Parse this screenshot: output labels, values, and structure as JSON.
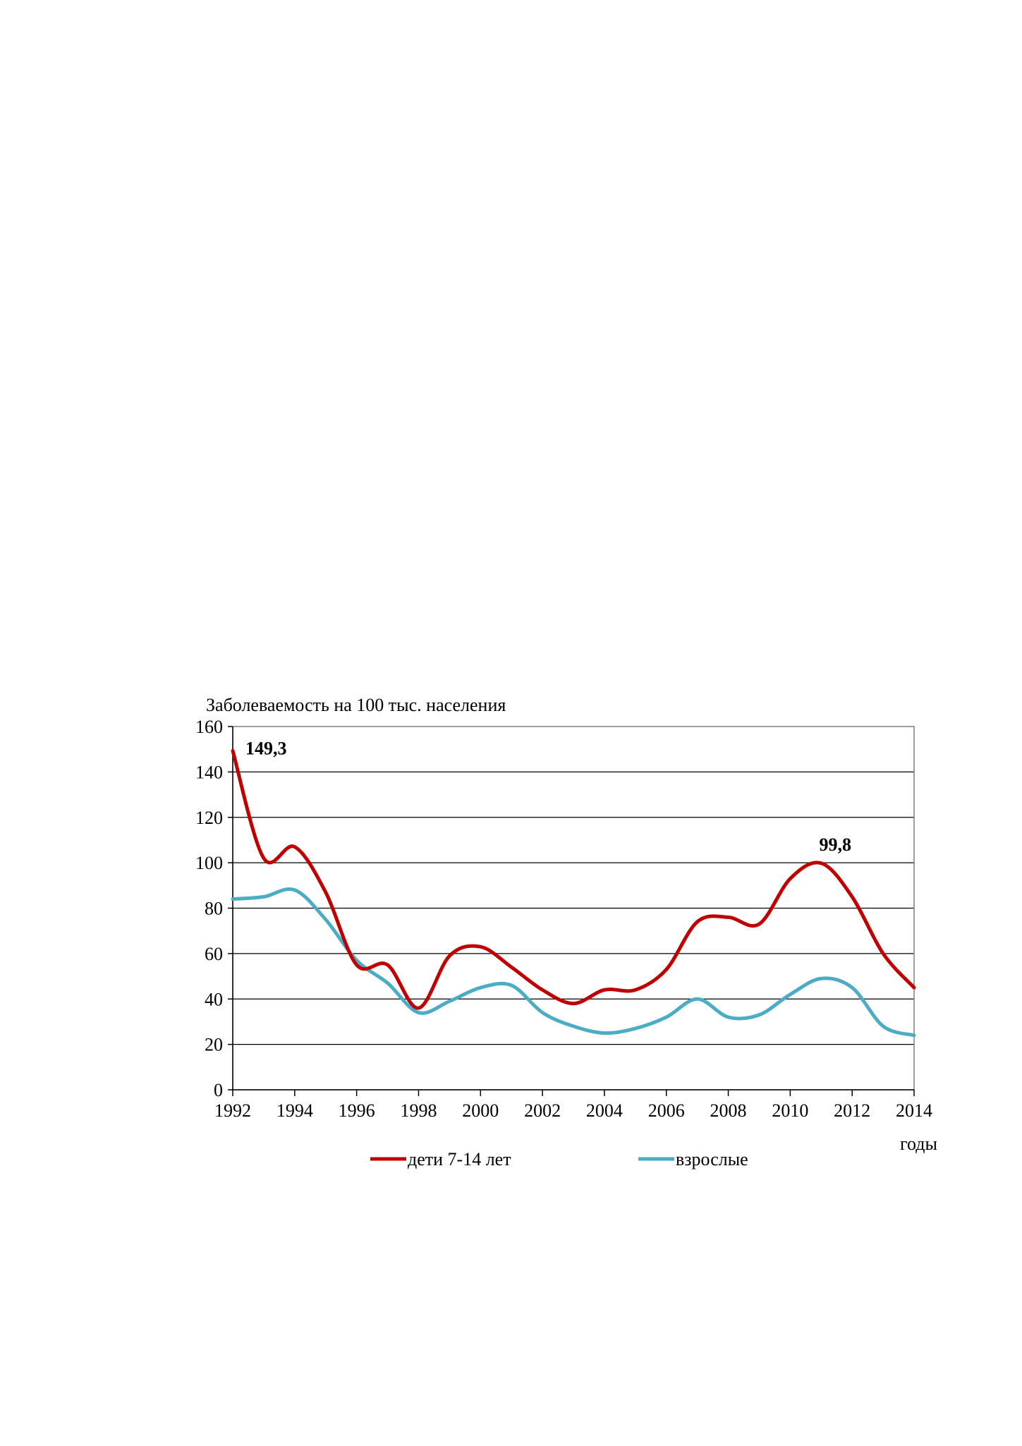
{
  "chart_data": {
    "type": "line",
    "title": "",
    "ylabel": "Заболеваемость на 100 тыс. населения",
    "xlabel": "годы",
    "x": [
      1992,
      1993,
      1994,
      1995,
      1996,
      1997,
      1998,
      1999,
      2000,
      2001,
      2002,
      2003,
      2004,
      2005,
      2006,
      2007,
      2008,
      2009,
      2010,
      2011,
      2012,
      2013,
      2014
    ],
    "x_ticks": [
      "1992",
      "1994",
      "1996",
      "1998",
      "2000",
      "2002",
      "2004",
      "2006",
      "2008",
      "2010",
      "2012",
      "2014"
    ],
    "y_ticks": [
      "0",
      "20",
      "40",
      "60",
      "80",
      "100",
      "120",
      "140",
      "160"
    ],
    "xlim": [
      1992,
      2014
    ],
    "ylim": [
      0,
      160
    ],
    "grid": "horizontal",
    "legend_position": "bottom",
    "series": [
      {
        "name": "дети 7-14 лет",
        "color": "#c00000",
        "values": [
          149.3,
          102,
          107,
          87,
          55,
          55,
          36,
          59,
          63,
          54,
          44,
          38,
          44,
          44,
          53,
          74,
          76,
          73,
          93,
          99.8,
          85,
          60,
          45
        ]
      },
      {
        "name": "взрослые",
        "color": "#4bacc6",
        "values": [
          84,
          85,
          88,
          75,
          57,
          47,
          34,
          39,
          45,
          46,
          34,
          28,
          25,
          27,
          32,
          40,
          32,
          33,
          42,
          49,
          45,
          28,
          24
        ]
      }
    ],
    "annotations": [
      {
        "text": "149,3",
        "series": 0,
        "x": 1992,
        "y": 149.3
      },
      {
        "text": "99,8",
        "series": 0,
        "x": 2011,
        "y": 99.8
      }
    ]
  }
}
